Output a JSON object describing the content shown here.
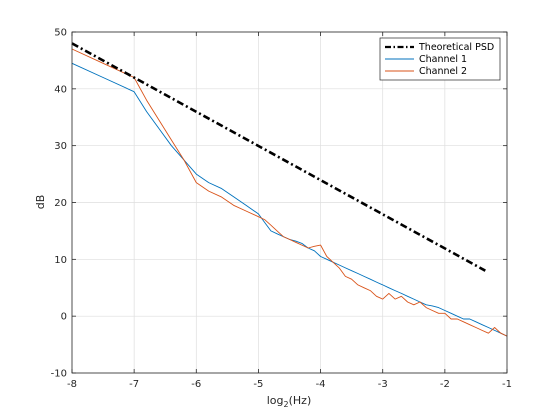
{
  "chart_data": {
    "type": "line",
    "title": "",
    "xlabel": "log",
    "xlabel_sub": "2",
    "xlabel_suffix": "(Hz)",
    "ylabel": "dB",
    "xlim": [
      -8,
      -1
    ],
    "ylim": [
      -10,
      50
    ],
    "xticks": [
      -8,
      -7,
      -6,
      -5,
      -4,
      -3,
      -2,
      -1
    ],
    "yticks": [
      -10,
      0,
      10,
      20,
      30,
      40,
      50
    ],
    "grid": true,
    "legend_position": "top-right",
    "colors": {
      "theoretical": "#000000",
      "channel1": "#0072BD",
      "channel2": "#D95319"
    },
    "series": [
      {
        "name": "Theoretical PSD",
        "style": "dash-dot",
        "x": [
          -8,
          -1.35
        ],
        "y": [
          48.0,
          8.0
        ]
      },
      {
        "name": "Channel 1",
        "x": [
          -8,
          -7.5,
          -7.0,
          -6.8,
          -6.6,
          -6.4,
          -6.2,
          -6.0,
          -5.8,
          -5.6,
          -5.4,
          -5.2,
          -5.0,
          -4.9,
          -4.8,
          -4.7,
          -4.6,
          -4.5,
          -4.4,
          -4.3,
          -4.2,
          -4.1,
          -4.0,
          -3.9,
          -3.8,
          -3.7,
          -3.6,
          -3.5,
          -3.4,
          -3.3,
          -3.2,
          -3.1,
          -3.0,
          -2.9,
          -2.8,
          -2.7,
          -2.6,
          -2.5,
          -2.4,
          -2.3,
          -2.2,
          -2.1,
          -2.0,
          -1.9,
          -1.8,
          -1.7,
          -1.6,
          -1.5,
          -1.4,
          -1.3,
          -1.2,
          -1.1,
          -1.0
        ],
        "y": [
          44.5,
          42.0,
          39.5,
          36.0,
          33.0,
          30.0,
          27.5,
          25.0,
          23.5,
          22.5,
          21.0,
          19.5,
          18.0,
          16.5,
          15.0,
          14.5,
          14.0,
          13.5,
          13.2,
          12.8,
          12.0,
          11.5,
          10.5,
          10.0,
          9.5,
          9.0,
          8.5,
          8.0,
          7.5,
          7.0,
          6.5,
          6.0,
          5.5,
          5.0,
          4.5,
          4.0,
          3.5,
          3.0,
          2.5,
          2.0,
          1.8,
          1.5,
          1.0,
          0.5,
          0.0,
          -0.5,
          -0.5,
          -1.0,
          -1.5,
          -2.0,
          -2.5,
          -3.0,
          -3.5
        ]
      },
      {
        "name": "Channel 2",
        "x": [
          -8,
          -7.5,
          -7.0,
          -6.8,
          -6.6,
          -6.4,
          -6.2,
          -6.0,
          -5.8,
          -5.6,
          -5.4,
          -5.2,
          -5.0,
          -4.9,
          -4.8,
          -4.7,
          -4.6,
          -4.5,
          -4.4,
          -4.3,
          -4.2,
          -4.1,
          -4.0,
          -3.9,
          -3.8,
          -3.7,
          -3.6,
          -3.5,
          -3.4,
          -3.3,
          -3.2,
          -3.1,
          -3.0,
          -2.9,
          -2.8,
          -2.7,
          -2.6,
          -2.5,
          -2.4,
          -2.3,
          -2.2,
          -2.1,
          -2.0,
          -1.9,
          -1.8,
          -1.7,
          -1.6,
          -1.5,
          -1.4,
          -1.3,
          -1.2,
          -1.1,
          -1.0
        ],
        "y": [
          47.0,
          44.5,
          42.0,
          38.0,
          34.5,
          31.0,
          27.5,
          23.5,
          22.0,
          21.0,
          19.5,
          18.5,
          17.5,
          17.0,
          16.0,
          15.0,
          14.0,
          13.5,
          13.0,
          12.5,
          12.0,
          12.3,
          12.5,
          10.5,
          9.5,
          8.5,
          7.0,
          6.5,
          5.5,
          5.0,
          4.5,
          3.5,
          3.0,
          4.0,
          3.0,
          3.5,
          2.5,
          2.0,
          2.5,
          1.5,
          1.0,
          0.5,
          0.5,
          -0.5,
          -0.5,
          -1.0,
          -1.5,
          -2.0,
          -2.5,
          -3.0,
          -2.0,
          -3.0,
          -3.5
        ]
      }
    ]
  }
}
